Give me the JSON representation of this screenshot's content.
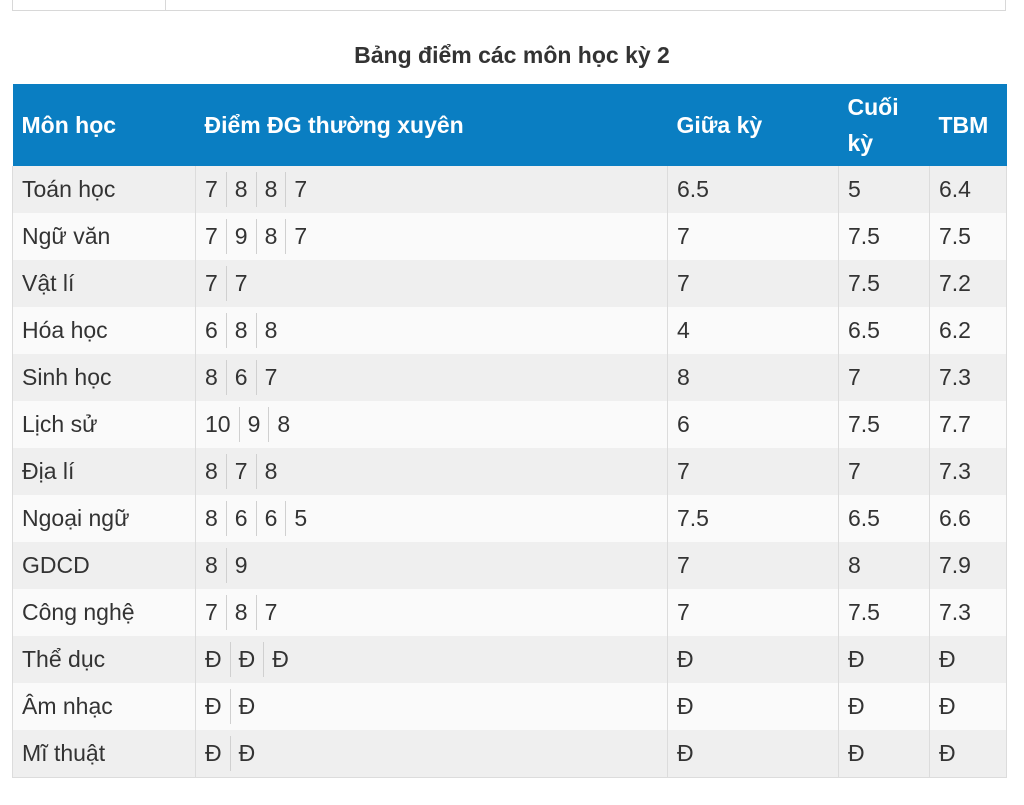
{
  "caption": "Bảng điểm các môn học kỳ 2",
  "headers": {
    "subject": "Môn học",
    "regular": "Điểm ĐG thường xuyên",
    "midterm": "Giữa kỳ",
    "final_line1": "Cuối",
    "final_line2": "kỳ",
    "average": "TBM"
  },
  "rows": [
    {
      "subject": "Toán học",
      "scores": [
        "7",
        "8",
        "8",
        "7"
      ],
      "midterm": "6.5",
      "final": "5",
      "average": "6.4"
    },
    {
      "subject": "Ngữ văn",
      "scores": [
        "7",
        "9",
        "8",
        "7"
      ],
      "midterm": "7",
      "final": "7.5",
      "average": "7.5"
    },
    {
      "subject": "Vật lí",
      "scores": [
        "7",
        "7"
      ],
      "midterm": "7",
      "final": "7.5",
      "average": "7.2"
    },
    {
      "subject": "Hóa học",
      "scores": [
        "6",
        "8",
        "8"
      ],
      "midterm": "4",
      "final": "6.5",
      "average": "6.2"
    },
    {
      "subject": "Sinh học",
      "scores": [
        "8",
        "6",
        "7"
      ],
      "midterm": "8",
      "final": "7",
      "average": "7.3"
    },
    {
      "subject": "Lịch sử",
      "scores": [
        "10",
        "9",
        "8"
      ],
      "midterm": "6",
      "final": "7.5",
      "average": "7.7"
    },
    {
      "subject": "Địa lí",
      "scores": [
        "8",
        "7",
        "8"
      ],
      "midterm": "7",
      "final": "7",
      "average": "7.3"
    },
    {
      "subject": "Ngoại ngữ",
      "scores": [
        "8",
        "6",
        "6",
        "5"
      ],
      "midterm": "7.5",
      "final": "6.5",
      "average": "6.6"
    },
    {
      "subject": "GDCD",
      "scores": [
        "8",
        "9"
      ],
      "midterm": "7",
      "final": "8",
      "average": "7.9"
    },
    {
      "subject": "Công nghệ",
      "scores": [
        "7",
        "8",
        "7"
      ],
      "midterm": "7",
      "final": "7.5",
      "average": "7.3"
    },
    {
      "subject": "Thể dục",
      "scores": [
        "Đ",
        "Đ",
        "Đ"
      ],
      "midterm": "Đ",
      "final": "Đ",
      "average": "Đ"
    },
    {
      "subject": "Âm nhạc",
      "scores": [
        "Đ",
        "Đ"
      ],
      "midterm": "Đ",
      "final": "Đ",
      "average": "Đ"
    },
    {
      "subject": "Mĩ thuật",
      "scores": [
        "Đ",
        "Đ"
      ],
      "midterm": "Đ",
      "final": "Đ",
      "average": "Đ"
    }
  ],
  "colors": {
    "header_bg": "#0a7ec2",
    "header_text": "#ffffff",
    "row_odd": "#efefef",
    "row_even": "#fafafa"
  }
}
